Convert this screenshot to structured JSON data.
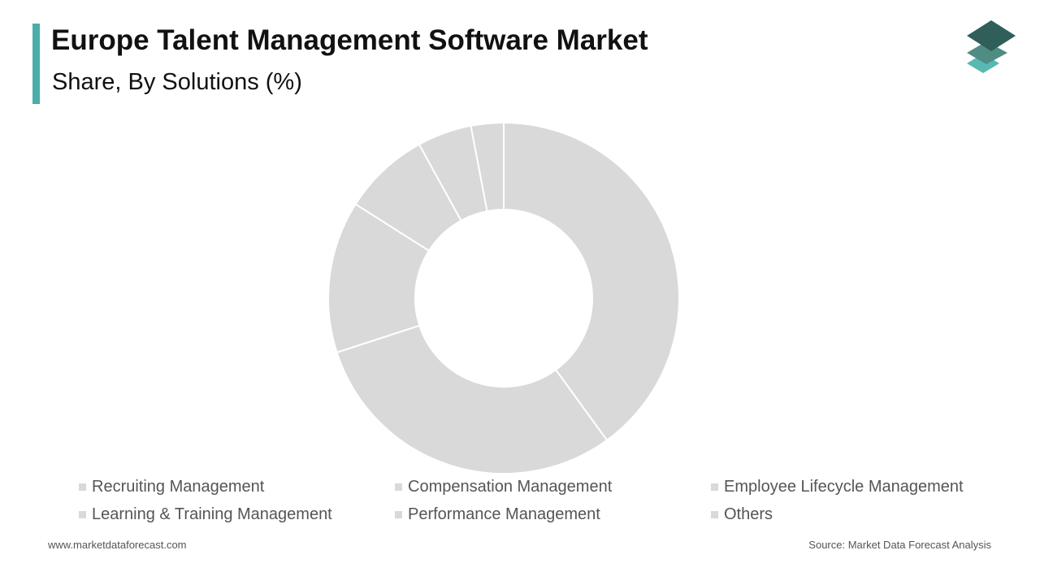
{
  "header": {
    "title": "Europe Talent Management Software Market",
    "subtitle": "Share, By Solutions (%)"
  },
  "brand": {
    "accent_color": "#4aaeaa",
    "logo_icon": "stacked-layers-logo-icon",
    "logo_colors": [
      "#2f5f58",
      "#4f8c84",
      "#57b9b1"
    ]
  },
  "chart_data": {
    "type": "pie",
    "donut": true,
    "title": "Europe Talent Management Software Market",
    "subtitle": "Share, By Solutions (%)",
    "categories": [
      "Recruiting Management",
      "Compensation Management",
      "Employee Lifecycle Management",
      "Learning & Training Management",
      "Performance Management",
      "Others"
    ],
    "values": [
      40,
      30,
      14,
      8,
      5,
      3
    ],
    "slice_color": "#d9d9d9",
    "slice_border_color": "#ffffff",
    "legend_placement": "bottom",
    "legend_swatch_color": "#d9d9d9"
  },
  "footer": {
    "website": "www.marketdataforecast.com",
    "source": "Source: Market Data Forecast Analysis"
  }
}
